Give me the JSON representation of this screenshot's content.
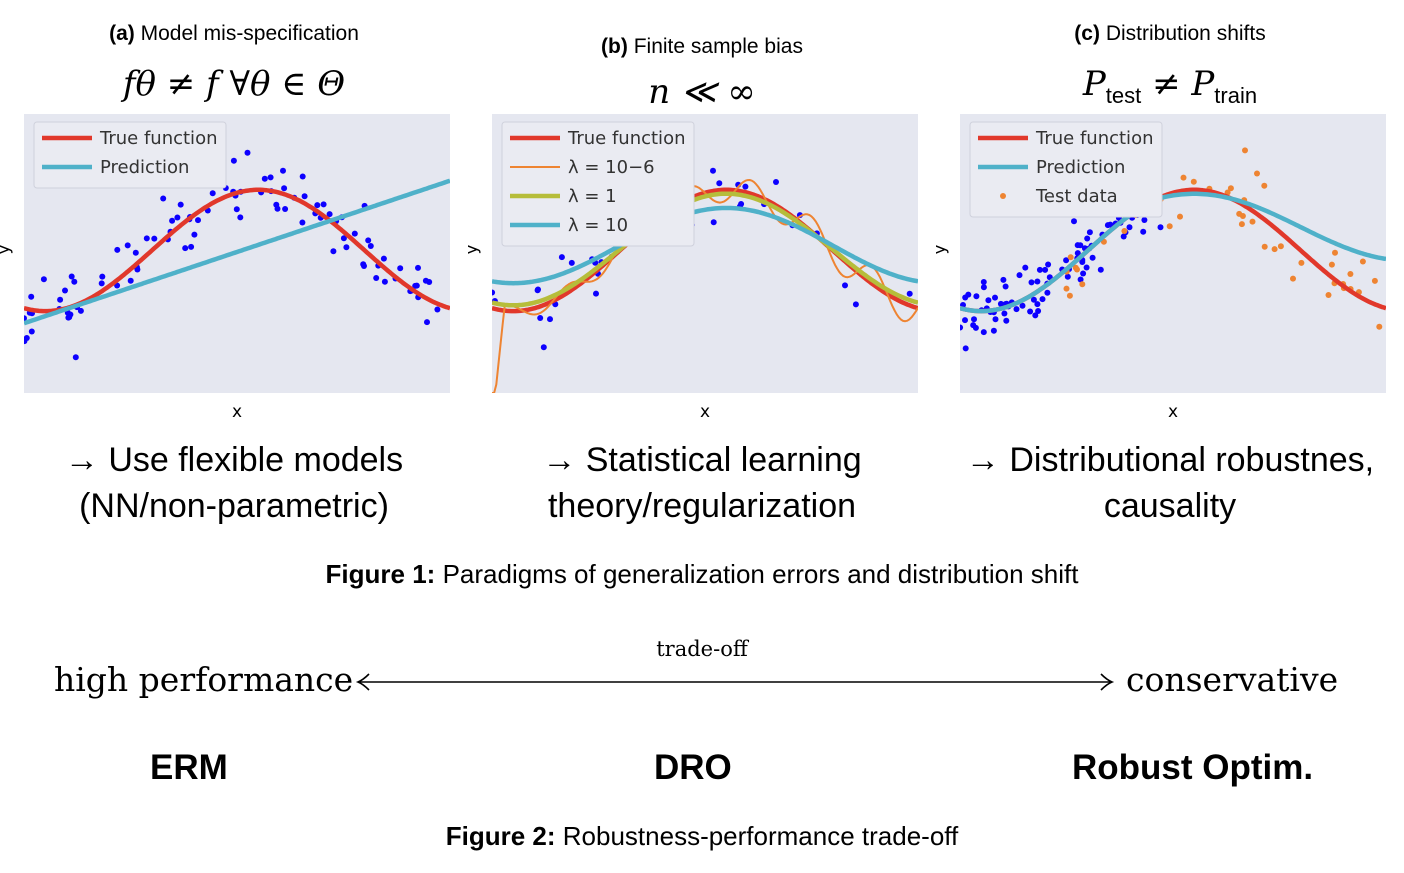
{
  "panels": [
    {
      "label": "(a)",
      "title": "Model mis-specification",
      "formula": "fθ ≠ f ∀θ ∈ Θ",
      "xlabel": "x",
      "ylabel": "y",
      "legend": [
        "True function",
        "Prediction"
      ],
      "takeaway": [
        "→ Use flexible models",
        "(NN/non-parametric)"
      ]
    },
    {
      "label": "(b)",
      "title": "Finite sample bias",
      "formula": "n ≪ ∞",
      "xlabel": "x",
      "ylabel": "y",
      "legend": [
        "True function",
        "λ = 10−6",
        "λ = 1",
        "λ = 10"
      ],
      "takeaway": [
        "→ Statistical learning",
        "theory/regularization"
      ]
    },
    {
      "label": "(c)",
      "title": "Distribution shifts",
      "formula_main": "P",
      "formula_sub1": "test",
      "formula_rel": "≠",
      "formula_sub2": "train",
      "xlabel": "x",
      "ylabel": "y",
      "legend": [
        "True function",
        "Prediction",
        "Test data"
      ],
      "takeaway": [
        "→ Distributional robustnes,",
        "causality"
      ]
    }
  ],
  "figure1_caption": {
    "label": "Figure 1:",
    "text": "Paradigms of generalization errors and distribution shift"
  },
  "tradeoff": {
    "left": "high performance",
    "label": "trade-off",
    "right": "conservative"
  },
  "methods": [
    "ERM",
    "DRO",
    "Robust Optim."
  ],
  "figure2_caption": {
    "label": "Figure 2:",
    "text": "Robustness-performance trade-off"
  },
  "colors": {
    "plot_bg": "#e5e7f0",
    "true_function": "#e1382b",
    "prediction": "#4fb1c9",
    "train_points": "#0d00ff",
    "test_points": "#ee8432",
    "lambda_small": "#ee8432",
    "lambda_one": "#b6bd3a",
    "lambda_ten": "#4fb1c9"
  },
  "chart_data": [
    {
      "type": "scatter",
      "title": "Model mis-specification",
      "xlabel": "x",
      "ylabel": "y",
      "series": [
        {
          "name": "True function"
        },
        {
          "name": "Prediction"
        }
      ]
    },
    {
      "type": "scatter",
      "title": "Finite sample bias",
      "xlabel": "x",
      "ylabel": "y",
      "series": [
        {
          "name": "True function"
        },
        {
          "name": "λ = 10−6"
        },
        {
          "name": "λ = 1"
        },
        {
          "name": "λ = 10"
        }
      ]
    },
    {
      "type": "scatter",
      "title": "Distribution shifts",
      "xlabel": "x",
      "ylabel": "y",
      "series": [
        {
          "name": "True function"
        },
        {
          "name": "Prediction"
        },
        {
          "name": "Test data"
        }
      ]
    }
  ]
}
